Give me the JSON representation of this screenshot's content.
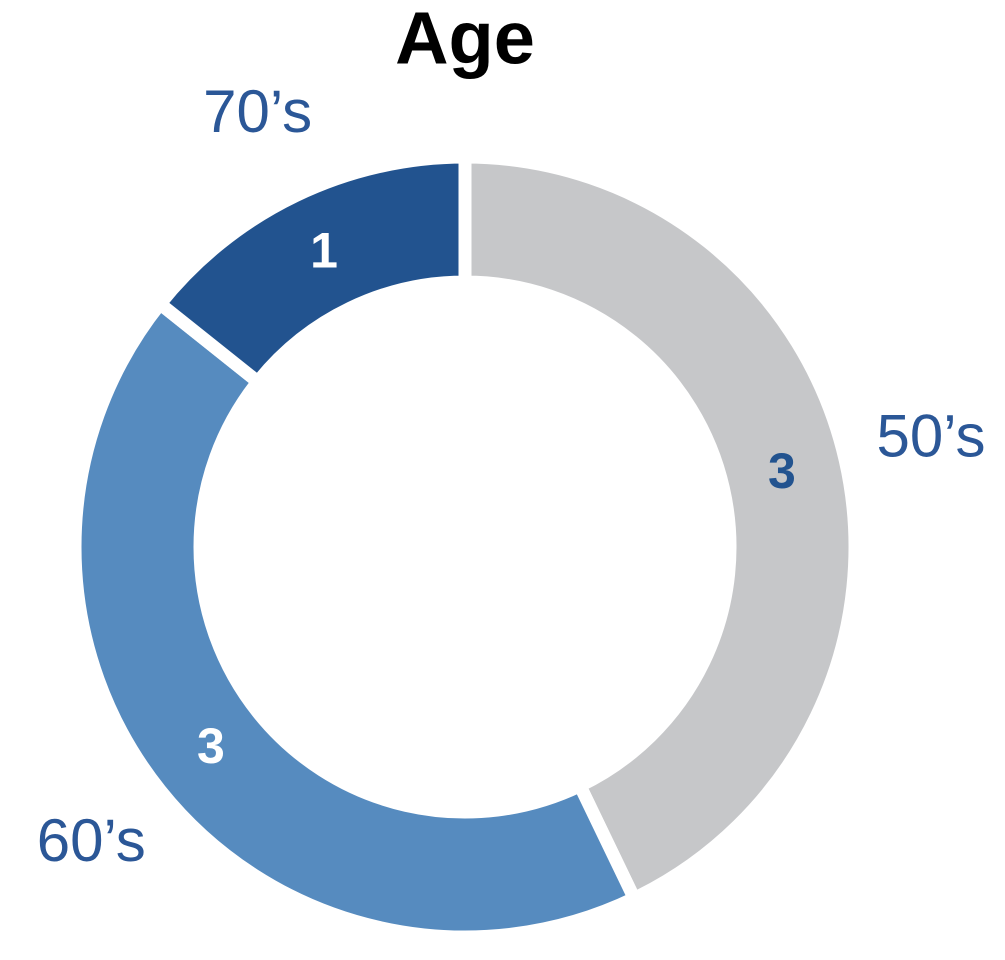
{
  "chart_data": {
    "type": "donut",
    "title": "Age",
    "categories": [
      "50’s",
      "60’s",
      "70’s"
    ],
    "values": [
      3,
      3,
      1
    ],
    "colors": [
      "#c6c7c9",
      "#568bbf",
      "#22538f"
    ],
    "value_label_colors": [
      "#22538f",
      "#ffffff",
      "#ffffff"
    ],
    "category_label_color": "#2b5797"
  }
}
